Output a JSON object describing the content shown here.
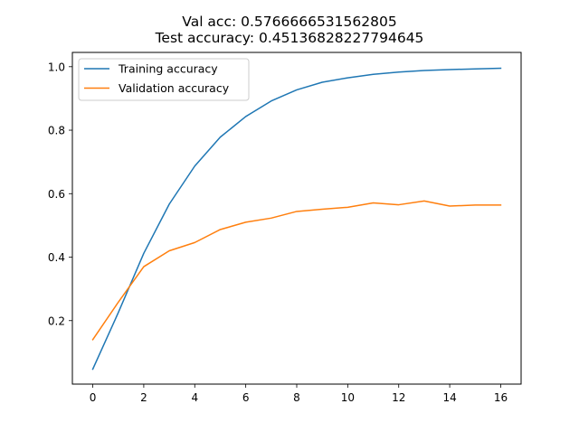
{
  "chart_data": {
    "type": "line",
    "title_lines": [
      "Val acc: 0.5766666531562805",
      "Test accuracy: 0.45136828227794645"
    ],
    "xlabel": "",
    "ylabel": "",
    "xlim": [
      -0.8,
      16.8
    ],
    "ylim": [
      0.0,
      1.045
    ],
    "xticks": [
      "0",
      "2",
      "4",
      "6",
      "8",
      "10",
      "12",
      "14",
      "16"
    ],
    "yticks": [
      "0.2",
      "0.4",
      "0.6",
      "0.8",
      "1.0"
    ],
    "grid": false,
    "legend_position": "top-left",
    "x": [
      0,
      1,
      2,
      3,
      4,
      5,
      6,
      7,
      8,
      9,
      10,
      11,
      12,
      13,
      14,
      15,
      16
    ],
    "series": [
      {
        "name": "Training accuracy",
        "color": "#1f77b4",
        "values": [
          0.047,
          0.225,
          0.412,
          0.567,
          0.687,
          0.778,
          0.843,
          0.892,
          0.927,
          0.951,
          0.965,
          0.976,
          0.983,
          0.988,
          0.991,
          0.993,
          0.995
        ]
      },
      {
        "name": "Validation accuracy",
        "color": "#ff7f0e",
        "values": [
          0.14,
          0.258,
          0.37,
          0.42,
          0.446,
          0.487,
          0.51,
          0.523,
          0.544,
          0.551,
          0.557,
          0.571,
          0.565,
          0.577,
          0.561,
          0.564,
          0.564
        ]
      }
    ]
  }
}
